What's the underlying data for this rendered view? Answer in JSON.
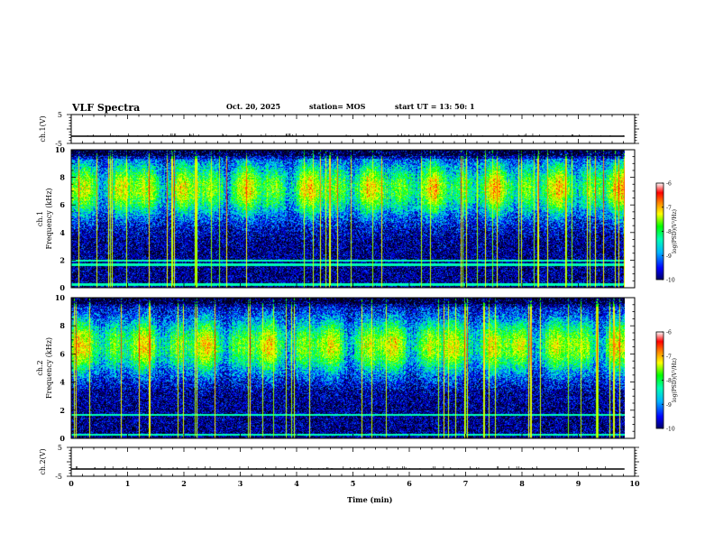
{
  "header": {
    "title": "VLF Spectra",
    "date": "Oct. 20, 2025",
    "station": "station= MOS",
    "start_ut": "start  UT  =   13: 50: 1"
  },
  "chart_data": {
    "type": "heatmap",
    "x_axis": {
      "label": "Time  (min)",
      "range": [
        0,
        10
      ],
      "ticks": [
        "0",
        "1",
        "2",
        "3",
        "4",
        "5",
        "6",
        "7",
        "8",
        "9",
        "10"
      ],
      "data_end_min": 9.82
    },
    "waveform_panels": [
      {
        "name": "ch1-waveform",
        "ylabel": "ch.1(V)",
        "yrange": [
          -5,
          5
        ],
        "ticks": [
          "5",
          "-5"
        ],
        "baseline": -2.5
      },
      {
        "name": "ch2-waveform",
        "ylabel": "ch.2(V)",
        "yrange": [
          -5,
          5
        ],
        "ticks": [
          "5",
          "-5"
        ],
        "baseline": -2.5
      }
    ],
    "spectrogram_panels": [
      {
        "name": "ch1-spectrogram",
        "ylabel": "ch.1  Frequency (kHz)",
        "yrange": [
          0,
          10
        ],
        "ticks": [
          "0",
          "2",
          "4",
          "6",
          "8",
          "10"
        ],
        "colorbar": {
          "label": "log(PSD)(V²/Hz)",
          "range": [
            -10,
            -6
          ],
          "ticks": [
            "-6",
            "-7",
            "-8",
            "-9",
            "-10"
          ]
        },
        "band_peak_khz": 7.2,
        "line_khz": [
          0.25,
          1.7,
          2.0
        ]
      },
      {
        "name": "ch2-spectrogram",
        "ylabel": "ch.2  Frequency (kHz)",
        "yrange": [
          0,
          10
        ],
        "ticks": [
          "0",
          "2",
          "4",
          "6",
          "8",
          "10"
        ],
        "colorbar": {
          "label": "log(PSD)(V²/Hz)",
          "range": [
            -10,
            -6
          ],
          "ticks": [
            "-6",
            "-7",
            "-8",
            "-9",
            "-10"
          ]
        },
        "band_peak_khz": 6.6,
        "line_khz": [
          0.3,
          1.7
        ]
      }
    ],
    "colormap": [
      "#000000",
      "#000066",
      "#0000ff",
      "#00b4ff",
      "#00ffb4",
      "#00ff00",
      "#b4ff00",
      "#ffff00",
      "#ff8000",
      "#ff0000",
      "#ffffff"
    ]
  }
}
